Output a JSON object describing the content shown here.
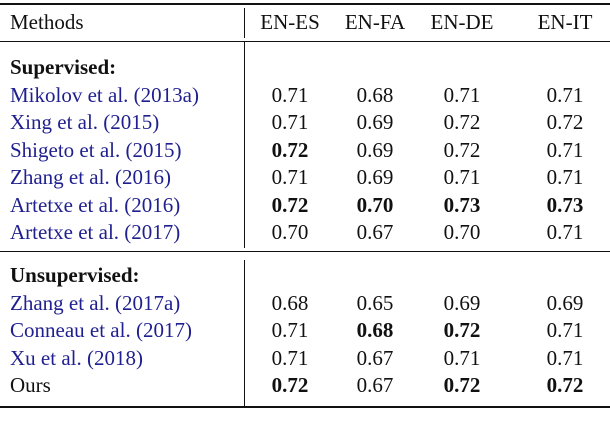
{
  "table": {
    "header": [
      "Methods",
      "EN-ES",
      "EN-FA",
      "EN-DE",
      "EN-IT"
    ],
    "sections": [
      {
        "title": "Supervised:",
        "rows": [
          {
            "method": "Mikolov et al. (2013a)",
            "cited": true,
            "values": [
              "0.71",
              "0.68",
              "0.71",
              "0.71"
            ],
            "bold": [
              false,
              false,
              false,
              false
            ]
          },
          {
            "method": "Xing et al. (2015)",
            "cited": true,
            "values": [
              "0.71",
              "0.69",
              "0.72",
              "0.72"
            ],
            "bold": [
              false,
              false,
              false,
              false
            ]
          },
          {
            "method": "Shigeto et al. (2015)",
            "cited": true,
            "values": [
              "0.72",
              "0.69",
              "0.72",
              "0.71"
            ],
            "bold": [
              true,
              false,
              false,
              false
            ]
          },
          {
            "method": "Zhang et al. (2016)",
            "cited": true,
            "values": [
              "0.71",
              "0.69",
              "0.71",
              "0.71"
            ],
            "bold": [
              false,
              false,
              false,
              false
            ]
          },
          {
            "method": "Artetxe et al. (2016)",
            "cited": true,
            "values": [
              "0.72",
              "0.70",
              "0.73",
              "0.73"
            ],
            "bold": [
              true,
              true,
              true,
              true
            ]
          },
          {
            "method": "Artetxe et al. (2017)",
            "cited": true,
            "values": [
              "0.70",
              "0.67",
              "0.70",
              "0.71"
            ],
            "bold": [
              false,
              false,
              false,
              false
            ]
          }
        ]
      },
      {
        "title": "Unsupervised:",
        "rows": [
          {
            "method": "Zhang et al. (2017a)",
            "cited": true,
            "values": [
              "0.68",
              "0.65",
              "0.69",
              "0.69"
            ],
            "bold": [
              false,
              false,
              false,
              false
            ]
          },
          {
            "method": "Conneau et al. (2017)",
            "cited": true,
            "values": [
              "0.71",
              "0.68",
              "0.72",
              "0.71"
            ],
            "bold": [
              false,
              true,
              true,
              false
            ]
          },
          {
            "method": "Xu et al. (2018)",
            "cited": true,
            "values": [
              "0.71",
              "0.67",
              "0.71",
              "0.71"
            ],
            "bold": [
              false,
              false,
              false,
              false
            ]
          },
          {
            "method": "Ours",
            "cited": false,
            "values": [
              "0.72",
              "0.67",
              "0.72",
              "0.72"
            ],
            "bold": [
              true,
              false,
              true,
              true
            ]
          }
        ]
      }
    ]
  }
}
